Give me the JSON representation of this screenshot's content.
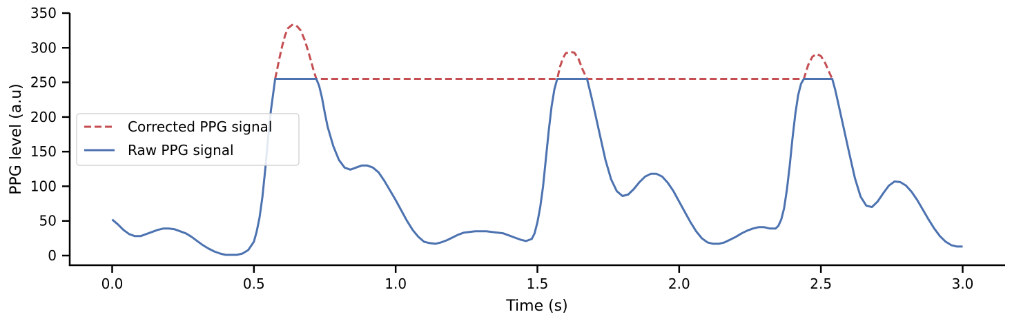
{
  "chart_data": {
    "type": "line",
    "xlabel": "Time (s)",
    "ylabel": "PPG level (a.u)",
    "xlim": [
      -0.15,
      3.15
    ],
    "ylim": [
      -15,
      350
    ],
    "xticks": [
      0.0,
      0.5,
      1.0,
      1.5,
      2.0,
      2.5,
      3.0
    ],
    "xtick_labels": [
      "0.0",
      "0.5",
      "1.0",
      "1.5",
      "2.0",
      "2.5",
      "3.0"
    ],
    "yticks": [
      0,
      50,
      100,
      150,
      200,
      250,
      300,
      350
    ],
    "ytick_labels": [
      "0",
      "50",
      "100",
      "150",
      "200",
      "250",
      "300",
      "350"
    ],
    "grid": false,
    "legend_position": "center-left",
    "series": [
      {
        "name": "Corrected PPG signal",
        "color": "#c44e52",
        "style": "dashed",
        "points": [
          [
            0.575,
            255
          ],
          [
            0.59,
            285
          ],
          [
            0.6,
            303
          ],
          [
            0.61,
            318
          ],
          [
            0.62,
            328
          ],
          [
            0.635,
            333
          ],
          [
            0.65,
            332
          ],
          [
            0.665,
            325
          ],
          [
            0.68,
            310
          ],
          [
            0.695,
            290
          ],
          [
            0.71,
            268
          ],
          [
            0.72,
            255
          ],
          [
            1.57,
            255
          ],
          [
            1.58,
            273
          ],
          [
            1.59,
            285
          ],
          [
            1.6,
            292
          ],
          [
            1.615,
            294
          ],
          [
            1.63,
            293
          ],
          [
            1.645,
            284
          ],
          [
            1.66,
            268
          ],
          [
            1.675,
            255
          ],
          [
            2.44,
            255
          ],
          [
            2.455,
            275
          ],
          [
            2.47,
            287
          ],
          [
            2.485,
            291
          ],
          [
            2.5,
            288
          ],
          [
            2.515,
            278
          ],
          [
            2.53,
            264
          ],
          [
            2.54,
            255
          ]
        ]
      },
      {
        "name": "Raw PPG signal",
        "color": "#4c72b0",
        "style": "solid",
        "points": [
          [
            0.0,
            52
          ],
          [
            0.02,
            45
          ],
          [
            0.04,
            37
          ],
          [
            0.06,
            31
          ],
          [
            0.08,
            28
          ],
          [
            0.1,
            28
          ],
          [
            0.12,
            31
          ],
          [
            0.14,
            34
          ],
          [
            0.16,
            37
          ],
          [
            0.18,
            39
          ],
          [
            0.2,
            39
          ],
          [
            0.22,
            38
          ],
          [
            0.24,
            35
          ],
          [
            0.26,
            32
          ],
          [
            0.28,
            27
          ],
          [
            0.3,
            21
          ],
          [
            0.32,
            15
          ],
          [
            0.34,
            10
          ],
          [
            0.36,
            6
          ],
          [
            0.38,
            3
          ],
          [
            0.4,
            1
          ],
          [
            0.42,
            1
          ],
          [
            0.44,
            1
          ],
          [
            0.46,
            3
          ],
          [
            0.48,
            8
          ],
          [
            0.5,
            20
          ],
          [
            0.51,
            35
          ],
          [
            0.52,
            55
          ],
          [
            0.53,
            85
          ],
          [
            0.54,
            125
          ],
          [
            0.55,
            170
          ],
          [
            0.56,
            210
          ],
          [
            0.57,
            240
          ],
          [
            0.575,
            255
          ],
          [
            0.72,
            255
          ],
          [
            0.73,
            245
          ],
          [
            0.74,
            228
          ],
          [
            0.75,
            206
          ],
          [
            0.76,
            186
          ],
          [
            0.78,
            158
          ],
          [
            0.8,
            138
          ],
          [
            0.82,
            127
          ],
          [
            0.84,
            124
          ],
          [
            0.86,
            127
          ],
          [
            0.88,
            130
          ],
          [
            0.9,
            130
          ],
          [
            0.92,
            127
          ],
          [
            0.94,
            120
          ],
          [
            0.96,
            108
          ],
          [
            0.98,
            94
          ],
          [
            1.0,
            80
          ],
          [
            1.02,
            65
          ],
          [
            1.04,
            50
          ],
          [
            1.06,
            37
          ],
          [
            1.08,
            27
          ],
          [
            1.1,
            20
          ],
          [
            1.12,
            18
          ],
          [
            1.14,
            17
          ],
          [
            1.16,
            19
          ],
          [
            1.18,
            22
          ],
          [
            1.2,
            26
          ],
          [
            1.22,
            30
          ],
          [
            1.24,
            33
          ],
          [
            1.26,
            34
          ],
          [
            1.28,
            35
          ],
          [
            1.3,
            35
          ],
          [
            1.32,
            35
          ],
          [
            1.34,
            34
          ],
          [
            1.36,
            33
          ],
          [
            1.38,
            32
          ],
          [
            1.4,
            29
          ],
          [
            1.42,
            26
          ],
          [
            1.44,
            23
          ],
          [
            1.46,
            21
          ],
          [
            1.48,
            24
          ],
          [
            1.49,
            32
          ],
          [
            1.5,
            48
          ],
          [
            1.51,
            70
          ],
          [
            1.52,
            100
          ],
          [
            1.53,
            140
          ],
          [
            1.54,
            180
          ],
          [
            1.55,
            215
          ],
          [
            1.56,
            240
          ],
          [
            1.57,
            255
          ],
          [
            1.675,
            255
          ],
          [
            1.69,
            230
          ],
          [
            1.7,
            212
          ],
          [
            1.72,
            175
          ],
          [
            1.74,
            138
          ],
          [
            1.76,
            110
          ],
          [
            1.78,
            93
          ],
          [
            1.8,
            86
          ],
          [
            1.82,
            88
          ],
          [
            1.84,
            96
          ],
          [
            1.86,
            106
          ],
          [
            1.88,
            114
          ],
          [
            1.9,
            118
          ],
          [
            1.92,
            118
          ],
          [
            1.94,
            114
          ],
          [
            1.96,
            105
          ],
          [
            1.98,
            93
          ],
          [
            2.0,
            78
          ],
          [
            2.02,
            63
          ],
          [
            2.04,
            48
          ],
          [
            2.06,
            35
          ],
          [
            2.08,
            25
          ],
          [
            2.1,
            19
          ],
          [
            2.12,
            17
          ],
          [
            2.14,
            17
          ],
          [
            2.16,
            19
          ],
          [
            2.18,
            23
          ],
          [
            2.2,
            27
          ],
          [
            2.22,
            32
          ],
          [
            2.24,
            36
          ],
          [
            2.26,
            39
          ],
          [
            2.28,
            41
          ],
          [
            2.3,
            41
          ],
          [
            2.32,
            39
          ],
          [
            2.34,
            39
          ],
          [
            2.35,
            43
          ],
          [
            2.36,
            52
          ],
          [
            2.37,
            68
          ],
          [
            2.38,
            95
          ],
          [
            2.39,
            130
          ],
          [
            2.4,
            170
          ],
          [
            2.41,
            205
          ],
          [
            2.42,
            232
          ],
          [
            2.43,
            248
          ],
          [
            2.44,
            255
          ],
          [
            2.54,
            255
          ],
          [
            2.55,
            240
          ],
          [
            2.56,
            222
          ],
          [
            2.58,
            185
          ],
          [
            2.6,
            148
          ],
          [
            2.62,
            112
          ],
          [
            2.64,
            85
          ],
          [
            2.66,
            72
          ],
          [
            2.68,
            70
          ],
          [
            2.7,
            78
          ],
          [
            2.72,
            90
          ],
          [
            2.74,
            101
          ],
          [
            2.76,
            107
          ],
          [
            2.78,
            106
          ],
          [
            2.8,
            101
          ],
          [
            2.82,
            92
          ],
          [
            2.84,
            80
          ],
          [
            2.86,
            66
          ],
          [
            2.88,
            52
          ],
          [
            2.9,
            39
          ],
          [
            2.92,
            28
          ],
          [
            2.94,
            20
          ],
          [
            2.96,
            15
          ],
          [
            2.98,
            13
          ],
          [
            3.0,
            13
          ]
        ]
      }
    ]
  }
}
